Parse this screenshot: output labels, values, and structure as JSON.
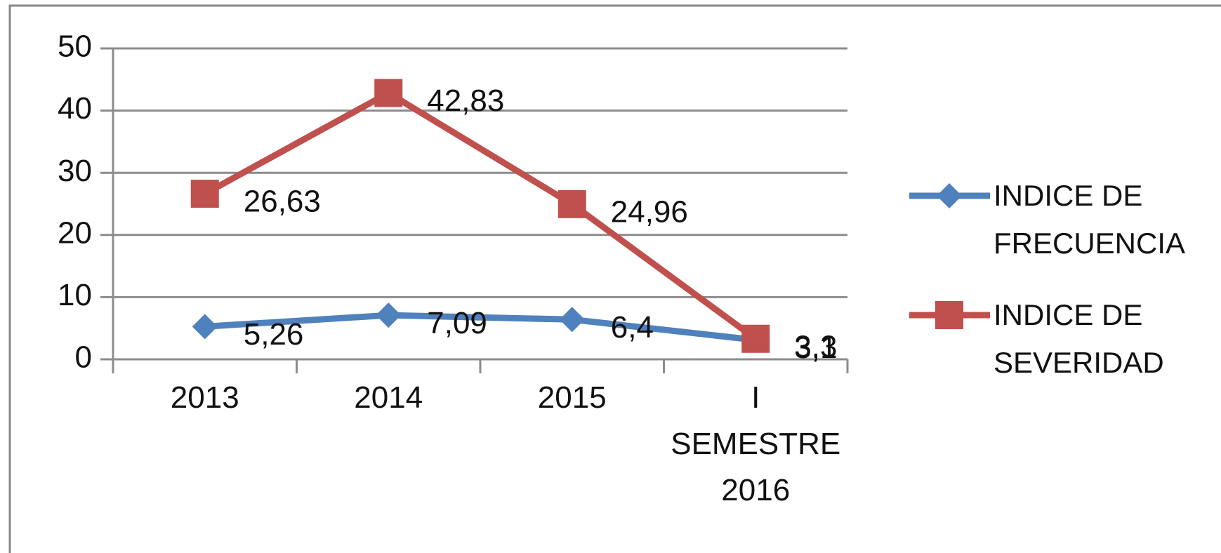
{
  "chart_data": {
    "type": "line",
    "categories": [
      "2013",
      "2014",
      "2015",
      "I SEMESTRE 2016"
    ],
    "series": [
      {
        "name": "INDICE DE FRECUENCIA",
        "color": "#4f81bd",
        "marker": "diamond",
        "values": [
          5.26,
          7.09,
          6.4,
          3.1
        ],
        "value_labels": [
          "5,26",
          "7,09",
          "6,4",
          "3,1"
        ]
      },
      {
        "name": "INDICE DE SEVERIDAD",
        "color": "#c0504d",
        "marker": "square",
        "values": [
          26.63,
          42.83,
          24.96,
          3.3
        ],
        "value_labels": [
          "26,63",
          "42,83",
          "24,96",
          "3,3"
        ]
      }
    ],
    "ylim": [
      0,
      50
    ],
    "yticks": [
      0,
      10,
      20,
      30,
      40,
      50
    ],
    "grid": true,
    "legend": "right"
  }
}
